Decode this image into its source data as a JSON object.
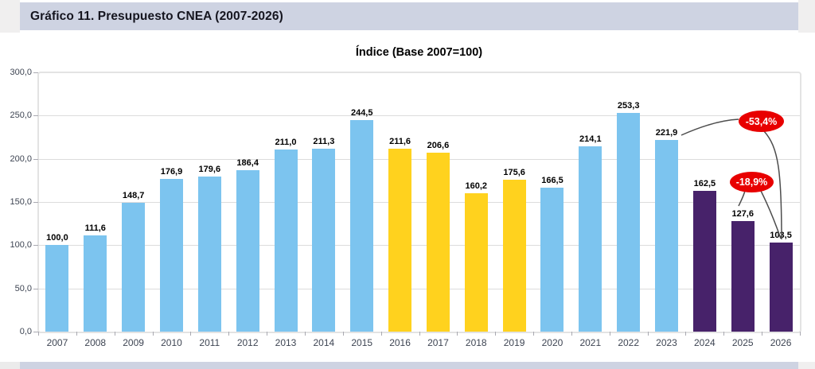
{
  "header": {
    "title": "Gráfico 11. Presupuesto CNEA (2007-2026)",
    "banner_color": "#CED3E2"
  },
  "chart_data": {
    "type": "bar",
    "title": "Índice (Base 2007=100)",
    "categories": [
      "2007",
      "2008",
      "2009",
      "2010",
      "2011",
      "2012",
      "2013",
      "2014",
      "2015",
      "2016",
      "2017",
      "2018",
      "2019",
      "2020",
      "2021",
      "2022",
      "2023",
      "2024",
      "2025",
      "2026"
    ],
    "values": [
      100.0,
      111.6,
      148.7,
      176.9,
      179.6,
      186.4,
      211.0,
      211.3,
      244.5,
      211.6,
      206.6,
      160.2,
      175.6,
      166.5,
      214.1,
      253.3,
      221.9,
      162.5,
      127.6,
      103.5
    ],
    "data_labels": [
      "100,0",
      "111,6",
      "148,7",
      "176,9",
      "179,6",
      "186,4",
      "211,0",
      "211,3",
      "244,5",
      "211,6",
      "206,6",
      "160,2",
      "175,6",
      "166,5",
      "214,1",
      "253,3",
      "221,9",
      "162,5",
      "127,6",
      "103,5"
    ],
    "bar_colors": [
      "blue",
      "blue",
      "blue",
      "blue",
      "blue",
      "blue",
      "blue",
      "blue",
      "blue",
      "yellow",
      "yellow",
      "yellow",
      "yellow",
      "blue",
      "blue",
      "blue",
      "blue",
      "purple",
      "purple",
      "purple"
    ],
    "palette": {
      "blue": "#7CC4EF",
      "yellow": "#FFD21E",
      "purple": "#47226A",
      "annotation_red": "#E80000",
      "connector_gray": "#4D4D4D"
    },
    "xlabel": "",
    "ylabel": "",
    "ylim": [
      0,
      300
    ],
    "ytick_step": 50,
    "ytick_labels": [
      "0,0",
      "50,0",
      "100,0",
      "150,0",
      "200,0",
      "250,0",
      "300,0"
    ],
    "grid": true,
    "legend": "none",
    "annotations": [
      {
        "label": "-53,4%"
      },
      {
        "label": "-18,9%"
      }
    ]
  }
}
